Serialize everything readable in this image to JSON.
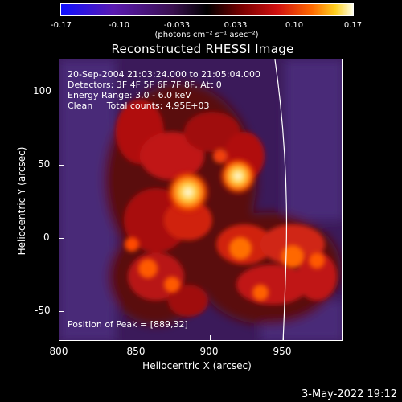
{
  "colorbar": {
    "ticks": [
      "-0.17",
      "-0.10",
      "-0.033",
      "0.033",
      "0.10",
      "0.17"
    ],
    "units": "(photons cm⁻² s⁻¹ asec⁻²)"
  },
  "title": "Reconstructed RHESSI Image",
  "info": {
    "line1": "20-Sep-2004 21:03:24.000 to 21:05:04.000",
    "line2": "Detectors: 3F 4F 5F 6F 7F 8F, Att 0",
    "line3": "Energy Range: 3.0 - 6.0 keV",
    "line4": "Clean     Total counts: 4.95E+03",
    "peak": "Position of Peak = [889,32]"
  },
  "axes": {
    "xlabel": "Heliocentric X (arcsec)",
    "ylabel": "Heliocentric Y (arcsec)",
    "xticks": [
      "800",
      "850",
      "900",
      "950"
    ],
    "yticks": [
      "100",
      "50",
      "0",
      "-50"
    ]
  },
  "timestamp": "3-May-2022 19:12",
  "colors": {
    "background": "#000000",
    "foreground": "#ffffff"
  }
}
